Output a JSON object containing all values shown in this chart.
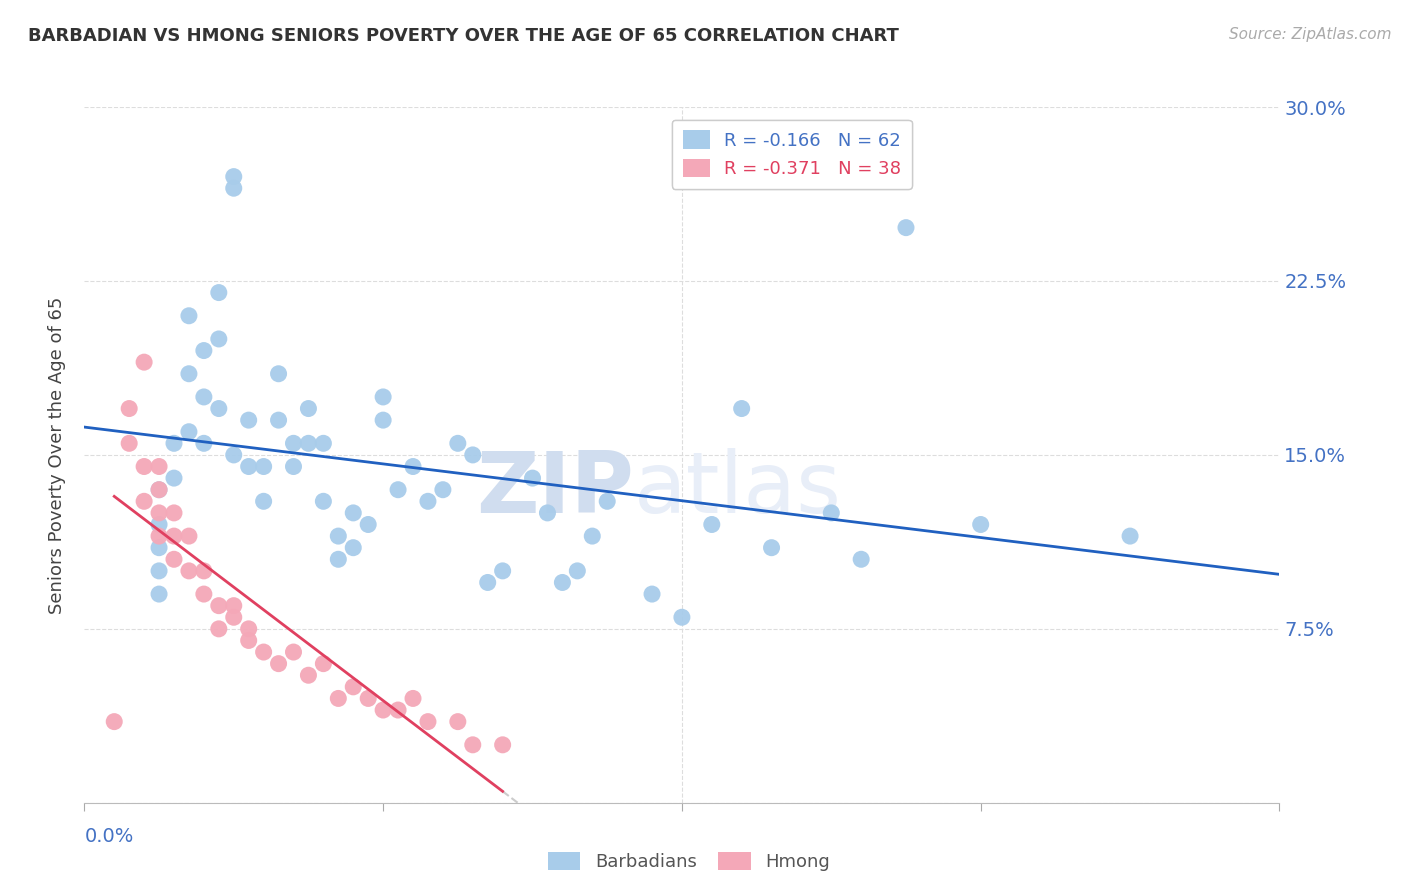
{
  "title": "BARBADIAN VS HMONG SENIORS POVERTY OVER THE AGE OF 65 CORRELATION CHART",
  "source": "Source: ZipAtlas.com",
  "ylabel": "Seniors Poverty Over the Age of 65",
  "xmin": 0.0,
  "xmax": 0.08,
  "ymin": 0.0,
  "ymax": 0.3,
  "yticks": [
    0.0,
    0.075,
    0.15,
    0.225,
    0.3
  ],
  "ytick_labels": [
    "",
    "7.5%",
    "15.0%",
    "22.5%",
    "30.0%"
  ],
  "xtick_positions": [
    0.0,
    0.02,
    0.04,
    0.06,
    0.08
  ],
  "watermark_zip": "ZIP",
  "watermark_atlas": "atlas",
  "legend_blue_label": "R = -0.166   N = 62",
  "legend_pink_label": "R = -0.371   N = 38",
  "legend_bottom_blue": "Barbadians",
  "legend_bottom_pink": "Hmong",
  "blue_color": "#A8CCEA",
  "pink_color": "#F4A8B8",
  "blue_line_color": "#2060C0",
  "pink_line_color": "#E04060",
  "dashed_line_color": "#CCCCCC",
  "grid_color": "#DDDDDD",
  "barbadian_x": [
    0.005,
    0.005,
    0.005,
    0.005,
    0.005,
    0.006,
    0.006,
    0.007,
    0.007,
    0.007,
    0.008,
    0.008,
    0.008,
    0.009,
    0.009,
    0.009,
    0.01,
    0.01,
    0.01,
    0.011,
    0.011,
    0.012,
    0.012,
    0.013,
    0.013,
    0.014,
    0.014,
    0.015,
    0.015,
    0.016,
    0.016,
    0.017,
    0.017,
    0.018,
    0.018,
    0.019,
    0.02,
    0.02,
    0.021,
    0.022,
    0.023,
    0.024,
    0.025,
    0.026,
    0.027,
    0.028,
    0.03,
    0.031,
    0.032,
    0.033,
    0.034,
    0.035,
    0.038,
    0.04,
    0.042,
    0.044,
    0.046,
    0.05,
    0.052,
    0.055,
    0.06,
    0.07
  ],
  "barbadian_y": [
    0.135,
    0.12,
    0.11,
    0.1,
    0.09,
    0.155,
    0.14,
    0.21,
    0.185,
    0.16,
    0.195,
    0.175,
    0.155,
    0.22,
    0.2,
    0.17,
    0.27,
    0.265,
    0.15,
    0.165,
    0.145,
    0.145,
    0.13,
    0.185,
    0.165,
    0.155,
    0.145,
    0.17,
    0.155,
    0.155,
    0.13,
    0.115,
    0.105,
    0.125,
    0.11,
    0.12,
    0.175,
    0.165,
    0.135,
    0.145,
    0.13,
    0.135,
    0.155,
    0.15,
    0.095,
    0.1,
    0.14,
    0.125,
    0.095,
    0.1,
    0.115,
    0.13,
    0.09,
    0.08,
    0.12,
    0.17,
    0.11,
    0.125,
    0.105,
    0.248,
    0.12,
    0.115
  ],
  "hmong_x": [
    0.002,
    0.003,
    0.003,
    0.004,
    0.004,
    0.004,
    0.005,
    0.005,
    0.005,
    0.005,
    0.006,
    0.006,
    0.006,
    0.007,
    0.007,
    0.008,
    0.008,
    0.009,
    0.009,
    0.01,
    0.01,
    0.011,
    0.011,
    0.012,
    0.013,
    0.014,
    0.015,
    0.016,
    0.017,
    0.018,
    0.019,
    0.02,
    0.021,
    0.022,
    0.023,
    0.025,
    0.026,
    0.028
  ],
  "hmong_y": [
    0.035,
    0.17,
    0.155,
    0.19,
    0.145,
    0.13,
    0.145,
    0.135,
    0.125,
    0.115,
    0.125,
    0.115,
    0.105,
    0.115,
    0.1,
    0.1,
    0.09,
    0.085,
    0.075,
    0.085,
    0.08,
    0.075,
    0.07,
    0.065,
    0.06,
    0.065,
    0.055,
    0.06,
    0.045,
    0.05,
    0.045,
    0.04,
    0.04,
    0.045,
    0.035,
    0.035,
    0.025,
    0.025
  ]
}
